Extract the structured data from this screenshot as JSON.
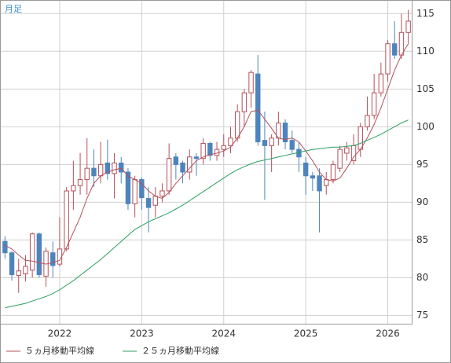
{
  "chart_data": {
    "type": "candlestick",
    "title": "月足",
    "categories": [
      null,
      null,
      null,
      null,
      null,
      null,
      null,
      null,
      "2022",
      null,
      null,
      null,
      null,
      null,
      null,
      null,
      null,
      null,
      null,
      null,
      "2023",
      null,
      null,
      null,
      null,
      null,
      null,
      null,
      null,
      null,
      null,
      null,
      "2024",
      null,
      null,
      null,
      null,
      null,
      null,
      null,
      null,
      null,
      null,
      null,
      "2025",
      null,
      null,
      null,
      null,
      null,
      null,
      null,
      null,
      null,
      null,
      null,
      "2026",
      null,
      null,
      null
    ],
    "open": [
      84.8,
      83.3,
      80.3,
      80.5,
      81,
      85.8,
      80.2,
      83.3,
      81.8,
      83.8,
      91.5,
      92.2,
      93,
      94.5,
      93.5,
      95.2,
      93.8,
      95.2,
      94,
      89.8,
      93,
      90.5,
      89.6,
      90.8,
      91.5,
      96,
      95.2,
      94,
      96,
      95.8,
      97.8,
      96.2,
      97,
      97.5,
      98.5,
      102,
      104.5,
      107,
      98.2,
      97.5,
      98.5,
      100.5,
      98.2,
      97,
      95.2,
      93.5,
      93.5,
      92.2,
      93,
      94.5,
      96.5,
      95.5,
      97,
      100,
      101.5,
      104.5,
      107,
      111,
      109.5,
      112.5
    ],
    "high": [
      85.5,
      83.5,
      82.5,
      83,
      86,
      86,
      84,
      84.8,
      88,
      92,
      95.5,
      96.5,
      98.5,
      97,
      98,
      98.3,
      96.5,
      96,
      94.5,
      93.5,
      93.3,
      92,
      92,
      92.5,
      97.8,
      96.5,
      95.5,
      97,
      96.5,
      98.5,
      98,
      98,
      99,
      100,
      103,
      105,
      107.5,
      109.5,
      102,
      99,
      102,
      101,
      99.5,
      98,
      96,
      94,
      94.5,
      94,
      95.5,
      97.5,
      98,
      99,
      100.5,
      104,
      107,
      108.5,
      111.5,
      114,
      115,
      115.5
    ],
    "low": [
      82.5,
      79.6,
      78,
      79.5,
      80,
      80,
      78.8,
      80,
      81.5,
      83.5,
      89,
      91,
      91,
      92,
      92.5,
      93,
      90.5,
      92.5,
      89,
      88,
      89,
      86,
      88,
      90,
      91,
      93,
      92.5,
      93,
      93.5,
      95,
      95.5,
      95.5,
      96,
      96.5,
      98,
      100,
      102.5,
      97.5,
      90.3,
      94,
      97.5,
      97,
      96.5,
      94,
      91,
      91.5,
      86,
      91,
      92.5,
      94,
      95.5,
      95,
      96,
      99.5,
      101,
      104,
      106,
      109,
      109,
      111
    ],
    "close": [
      83.3,
      80.4,
      80.9,
      81.5,
      85.8,
      80.4,
      83.5,
      81.6,
      83.8,
      91.5,
      92.2,
      93,
      94.5,
      93.5,
      95,
      93.8,
      95.2,
      94,
      89.8,
      93,
      90.6,
      89.3,
      90.8,
      91.5,
      95.8,
      95,
      94,
      96,
      95.8,
      97.8,
      96.2,
      97,
      97.5,
      98.5,
      102,
      104.5,
      107.2,
      98,
      97.5,
      98.5,
      100.5,
      98,
      97,
      96,
      93.5,
      93.2,
      91.5,
      93,
      95,
      97,
      97.2,
      97.5,
      100,
      101.5,
      104.5,
      107,
      111,
      109.5,
      112.5,
      114
    ],
    "up_color": "#b4505a",
    "down_color": "#4d84bd",
    "series": [
      {
        "name": "５ヵ月移動平均線",
        "color": "#b4505a",
        "values": [
          84.3,
          83.8,
          83.0,
          82.3,
          82.2,
          82.0,
          81.8,
          82.0,
          82.3,
          84.0,
          86.0,
          88.0,
          90.5,
          92.5,
          93.5,
          94.0,
          94.3,
          94.5,
          93.5,
          93.0,
          92.5,
          91.5,
          90.8,
          90.5,
          91.3,
          92.5,
          93.5,
          94.5,
          95.5,
          96.0,
          96.3,
          96.5,
          96.8,
          97.3,
          98.5,
          100.0,
          102.0,
          102.2,
          101.0,
          99.8,
          98.5,
          98.3,
          98.5,
          98.0,
          96.8,
          95.5,
          94.0,
          93.0,
          92.8,
          93.2,
          94.5,
          96.0,
          97.0,
          98.5,
          100.3,
          102.5,
          105.0,
          107.5,
          109.5,
          111.0
        ]
      },
      {
        "name": "２５ヵ月移動平均線",
        "color": "#2e9e62",
        "values": [
          76.0,
          76.2,
          76.4,
          76.6,
          76.9,
          77.2,
          77.5,
          77.9,
          78.4,
          79.0,
          79.6,
          80.3,
          81.0,
          81.7,
          82.4,
          83.2,
          84.0,
          84.8,
          85.6,
          86.4,
          86.9,
          87.4,
          87.8,
          88.2,
          88.6,
          89.1,
          89.6,
          90.2,
          90.8,
          91.4,
          92.0,
          92.6,
          93.2,
          93.8,
          94.3,
          94.7,
          95.1,
          95.4,
          95.6,
          95.8,
          96.0,
          96.2,
          96.4,
          96.6,
          96.8,
          97.0,
          97.1,
          97.2,
          97.3,
          97.3,
          97.4,
          97.5,
          97.8,
          98.2,
          98.6,
          99.0,
          99.5,
          100.0,
          100.5,
          100.9
        ]
      }
    ],
    "ylim": [
      73.9,
      116.8
    ],
    "yticks": [
      75,
      80,
      85,
      90,
      95,
      100,
      105,
      110,
      115
    ],
    "grid": true
  }
}
